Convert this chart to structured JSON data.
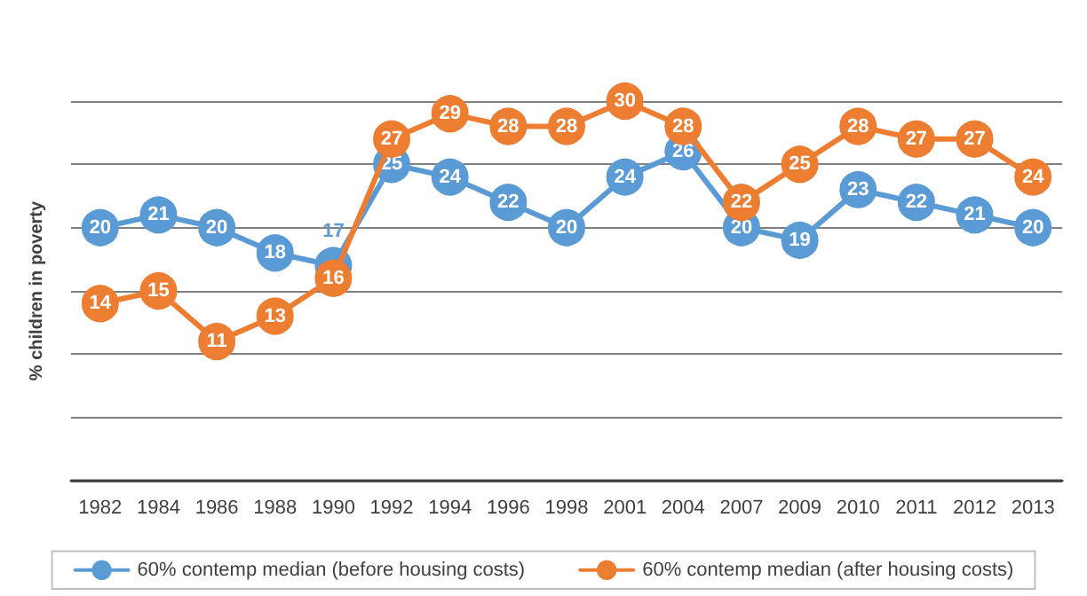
{
  "chart_data": {
    "type": "line",
    "ylabel": "% children in poverty",
    "categories": [
      "1982",
      "1984",
      "1986",
      "1988",
      "1990",
      "1992",
      "1994",
      "1996",
      "1998",
      "2001",
      "2004",
      "2007",
      "2009",
      "2010",
      "2011",
      "2012",
      "2013"
    ],
    "series": [
      {
        "name": "60% contemp median (before housing costs)",
        "color": "#5b9bd5",
        "values": [
          20,
          21,
          20,
          18,
          17,
          25,
          24,
          22,
          20,
          24,
          26,
          20,
          19,
          23,
          22,
          21,
          20
        ]
      },
      {
        "name": "60% contemp median (after housing costs)",
        "color": "#ed7d31",
        "values": [
          14,
          15,
          11,
          13,
          16,
          27,
          29,
          28,
          28,
          30,
          28,
          22,
          25,
          28,
          27,
          27,
          24
        ]
      }
    ],
    "ylim": [
      0,
      30
    ],
    "yticks": [
      {
        "value": 0,
        "label": null
      },
      {
        "value": 5,
        "label": null
      },
      {
        "value": 10,
        "label": null
      },
      {
        "value": 15,
        "label": null
      },
      {
        "value": 20,
        "label": null
      },
      {
        "value": 25,
        "label": null
      },
      {
        "value": 30,
        "label": null
      }
    ],
    "tick_labels": "x",
    "grid": "y",
    "legend": "bottom",
    "marker": "circle",
    "line_style": "solid",
    "data_labels": true
  }
}
